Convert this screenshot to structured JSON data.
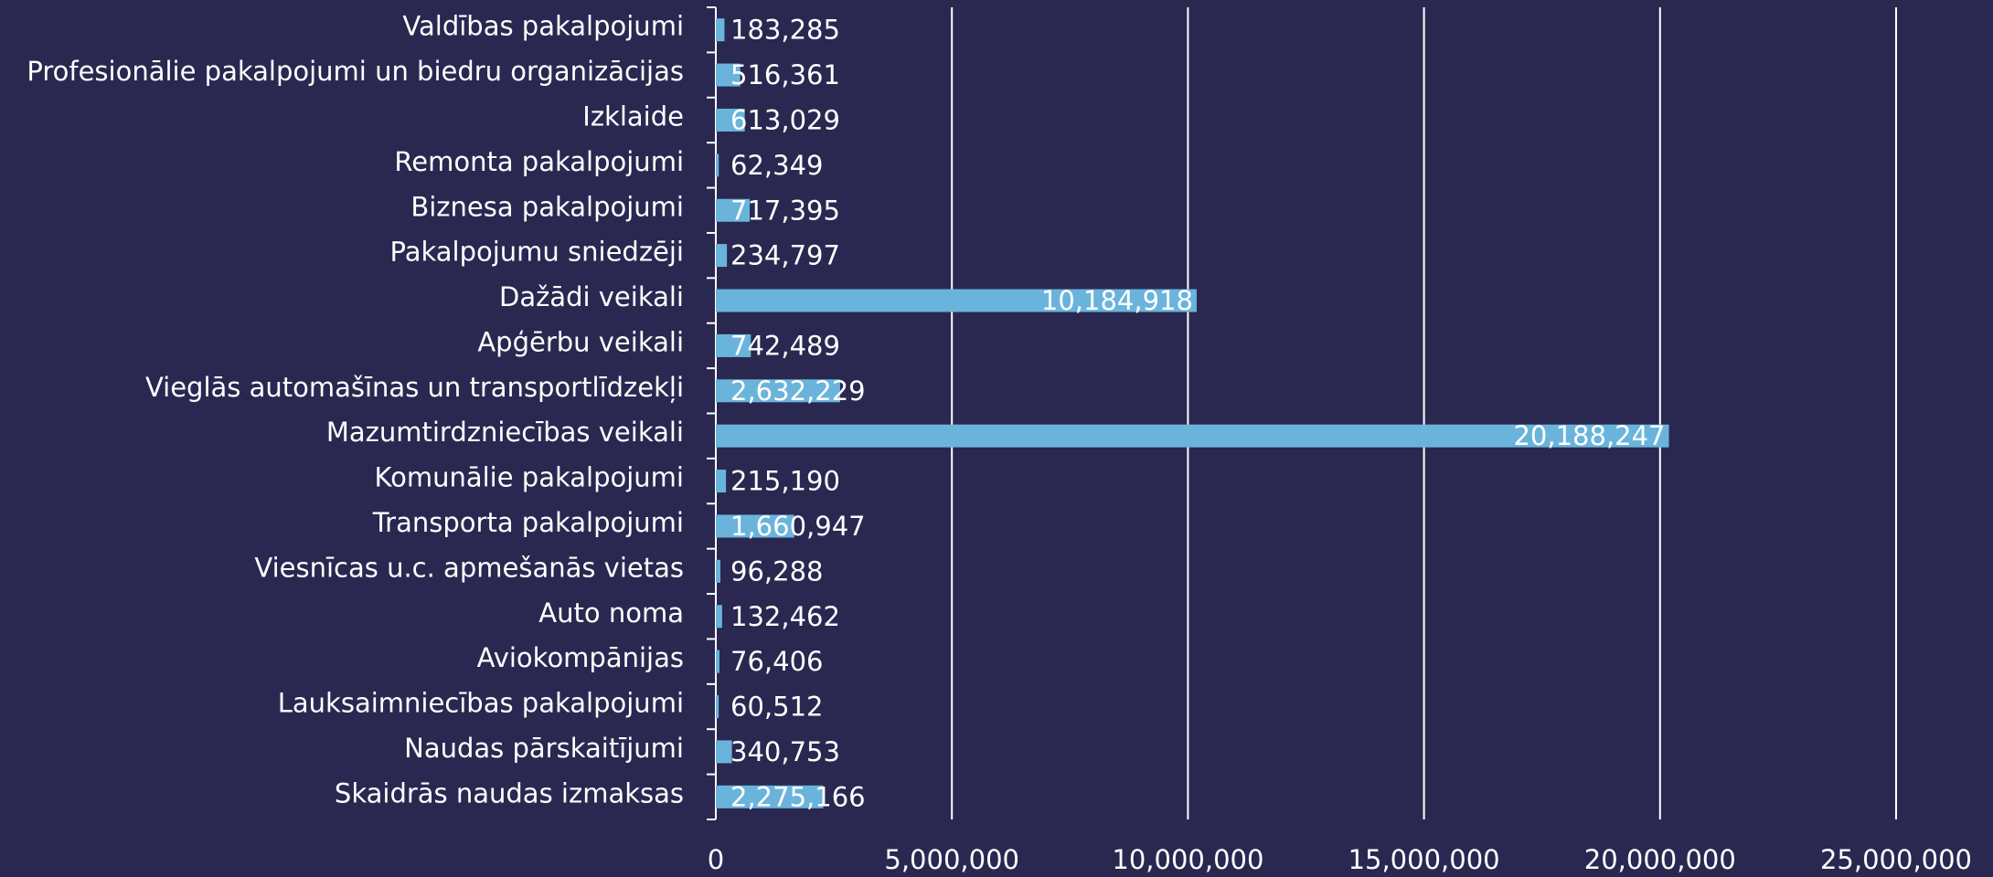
{
  "chart_data": {
    "type": "bar",
    "orientation": "horizontal",
    "categories": [
      "Valdības pakalpojumi",
      "Profesionālie pakalpojumi un biedru organizācijas",
      "Izklaide",
      "Remonta pakalpojumi",
      "Biznesa pakalpojumi",
      "Pakalpojumu sniedzēji",
      "Dažādi veikali",
      "Apģērbu veikali",
      "Vieglās automašīnas un transportlīdzekļi",
      "Mazumtirdzniecības veikali",
      "Komunālie pakalpojumi",
      "Transporta pakalpojumi",
      "Viesnīcas u.c. apmešanās vietas",
      "Auto noma",
      "Aviokompānijas",
      "Lauksaimniecības pakalpojumi",
      "Naudas pārskaitījumi",
      "Skaidrās naudas izmaksas"
    ],
    "values": [
      183285,
      516361,
      613029,
      62349,
      717395,
      234797,
      10184918,
      742489,
      2632229,
      20188247,
      215190,
      1660947,
      96288,
      132462,
      76406,
      60512,
      340753,
      2275166
    ],
    "value_labels": [
      "183,285",
      "516,361",
      "613,029",
      "62,349",
      "717,395",
      "234,797",
      "10,184,918",
      "742,489",
      "2,632,229",
      "20,188,247",
      "215,190",
      "1,660,947",
      "96,288",
      "132,462",
      "76,406",
      "60,512",
      "340,753",
      "2,275,166"
    ],
    "color": "#6ab4dc",
    "xlim": [
      0,
      25000000
    ],
    "xticks": [
      0,
      {
        "value": 5000000,
        "label": "5,000,000"
      },
      {
        "value": 10000000,
        "label": "10,000,000"
      },
      {
        "value": 15000000,
        "label": "15,000,000"
      },
      {
        "value": 20000000,
        "label": "20,000,000"
      },
      {
        "value": 25000000,
        "label": "25,000,000"
      }
    ],
    "grid": true
  }
}
